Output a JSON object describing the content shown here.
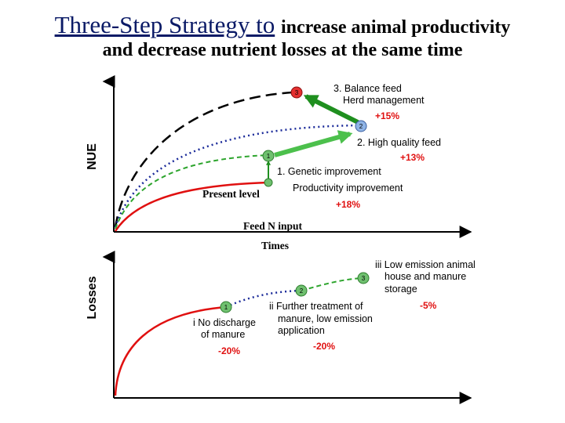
{
  "title": {
    "line1_a": "Three-Step Strategy to",
    "line1_b": "increase animal productivity",
    "line2": "and decrease nutrient losses at the same time"
  },
  "axes": {
    "nue": "NUE",
    "losses": "Losses",
    "feed_n_input": "Feed N input",
    "times": "Times"
  },
  "upper": {
    "present_level": "Present level",
    "step1_line1": "1.  Genetic improvement",
    "step1_line2": "Productivity improvement",
    "step1_pct": "+18%",
    "step2": "2. High quality feed",
    "step2_pct": "+13%",
    "step3_line1": "3. Balance feed",
    "step3_line2": "Herd management",
    "step3_pct": "+15%",
    "node1": "1",
    "node2": "2",
    "node3": "3"
  },
  "lower": {
    "i_line1": "i No discharge",
    "i_line2": "of manure",
    "i_pct": "-20%",
    "ii_line1": "ii Further treatment of",
    "ii_line2": "manure, low emission",
    "ii_line3": "application",
    "ii_pct": "-20%",
    "iii_line1": "iii Low emission animal",
    "iii_line2": "house and manure",
    "iii_line3": "storage",
    "iii_pct": "-5%",
    "node1": "1",
    "node2": "2",
    "node3": "3"
  },
  "colors": {
    "red": "#e01010",
    "green": "#33aa33",
    "blue": "#1a2a99",
    "node_red": "#e53030",
    "node_green": "#6fc06f",
    "node_blue": "#8fb4e6"
  }
}
